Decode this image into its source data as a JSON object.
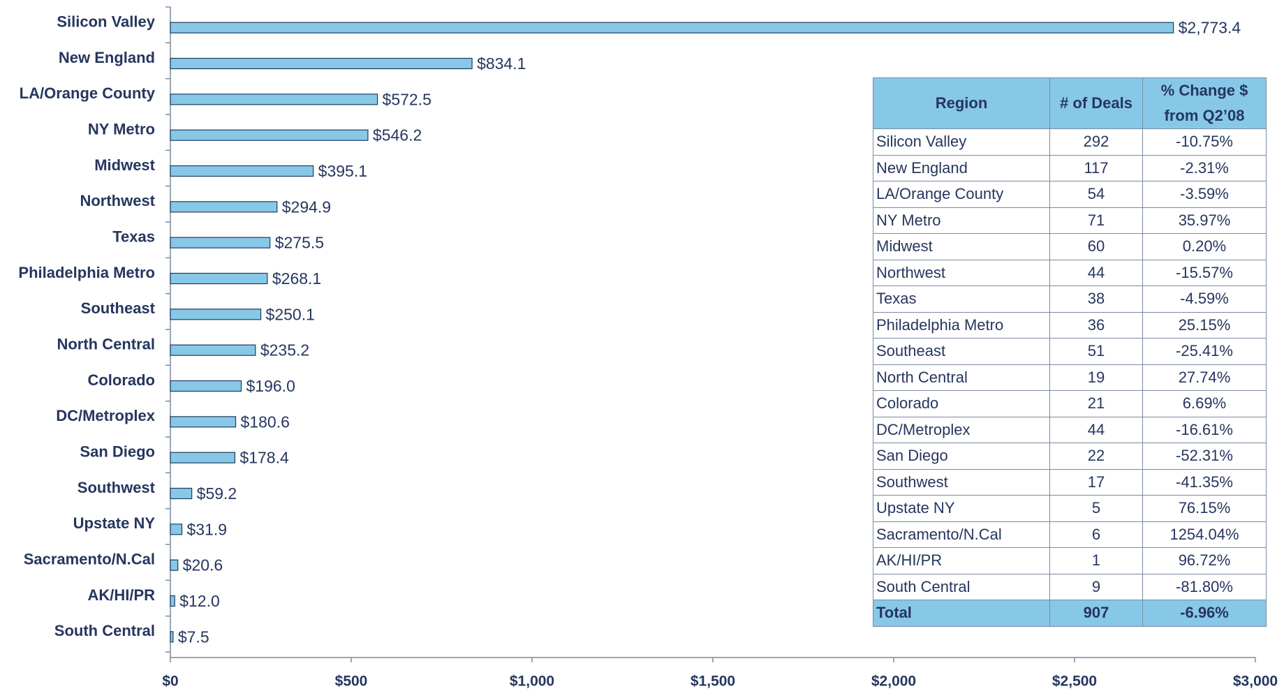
{
  "chart_data": {
    "type": "bar",
    "orientation": "horizontal",
    "categories": [
      "Silicon Valley",
      "New England",
      "LA/Orange County",
      "NY Metro",
      "Midwest",
      "Northwest",
      "Texas",
      "Philadelphia Metro",
      "Southeast",
      "North Central",
      "Colorado",
      "DC/Metroplex",
      "San Diego",
      "Southwest",
      "Upstate NY",
      "Sacramento/N.Cal",
      "AK/HI/PR",
      "South Central"
    ],
    "values": [
      2773.4,
      834.1,
      572.5,
      546.2,
      395.1,
      294.9,
      275.5,
      268.1,
      250.1,
      235.2,
      196.0,
      180.6,
      178.4,
      59.2,
      31.9,
      20.6,
      12.0,
      7.5
    ],
    "value_labels": [
      "$2,773.4",
      "$834.1",
      "$572.5",
      "$546.2",
      "$395.1",
      "$294.9",
      "$275.5",
      "$268.1",
      "$250.1",
      "$235.2",
      "$196.0",
      "$180.6",
      "$178.4",
      "$59.2",
      "$31.9",
      "$20.6",
      "$12.0",
      "$7.5"
    ],
    "color": "#87c8e6",
    "xlim": [
      0,
      3000
    ],
    "xticks": [
      {
        "value": 0,
        "label": "$0"
      },
      {
        "value": 500,
        "label": "$500"
      },
      {
        "value": 1000,
        "label": "$1,000"
      },
      {
        "value": 1500,
        "label": "$1,500"
      },
      {
        "value": 2000,
        "label": "$2,000"
      },
      {
        "value": 2500,
        "label": "$2,500"
      },
      {
        "value": 3000,
        "label": "$3,000"
      }
    ],
    "grid": false
  },
  "table": {
    "header": [
      "Region",
      "# of Deals",
      "% Change $ from Q2’08"
    ],
    "rows": [
      [
        "Silicon Valley",
        292,
        "-10.75%"
      ],
      [
        "New England",
        117,
        "-2.31%"
      ],
      [
        "LA/Orange County",
        54,
        "-3.59%"
      ],
      [
        "NY Metro",
        71,
        "35.97%"
      ],
      [
        "Midwest",
        60,
        "0.20%"
      ],
      [
        "Northwest",
        44,
        "-15.57%"
      ],
      [
        "Texas",
        38,
        "-4.59%"
      ],
      [
        "Philadelphia Metro",
        36,
        "25.15%"
      ],
      [
        "Southeast",
        51,
        "-25.41%"
      ],
      [
        "North Central",
        19,
        "27.74%"
      ],
      [
        "Colorado",
        21,
        "6.69%"
      ],
      [
        "DC/Metroplex",
        44,
        "-16.61%"
      ],
      [
        "San Diego",
        22,
        "-52.31%"
      ],
      [
        "Southwest",
        17,
        "-41.35%"
      ],
      [
        "Upstate NY",
        5,
        "76.15%"
      ],
      [
        "Sacramento/N.Cal",
        6,
        "1254.04%"
      ],
      [
        "AK/HI/PR",
        1,
        "96.72%"
      ],
      [
        "South Central",
        9,
        "-81.80%"
      ]
    ],
    "total": [
      "Total",
      907,
      "-6.96%"
    ]
  }
}
